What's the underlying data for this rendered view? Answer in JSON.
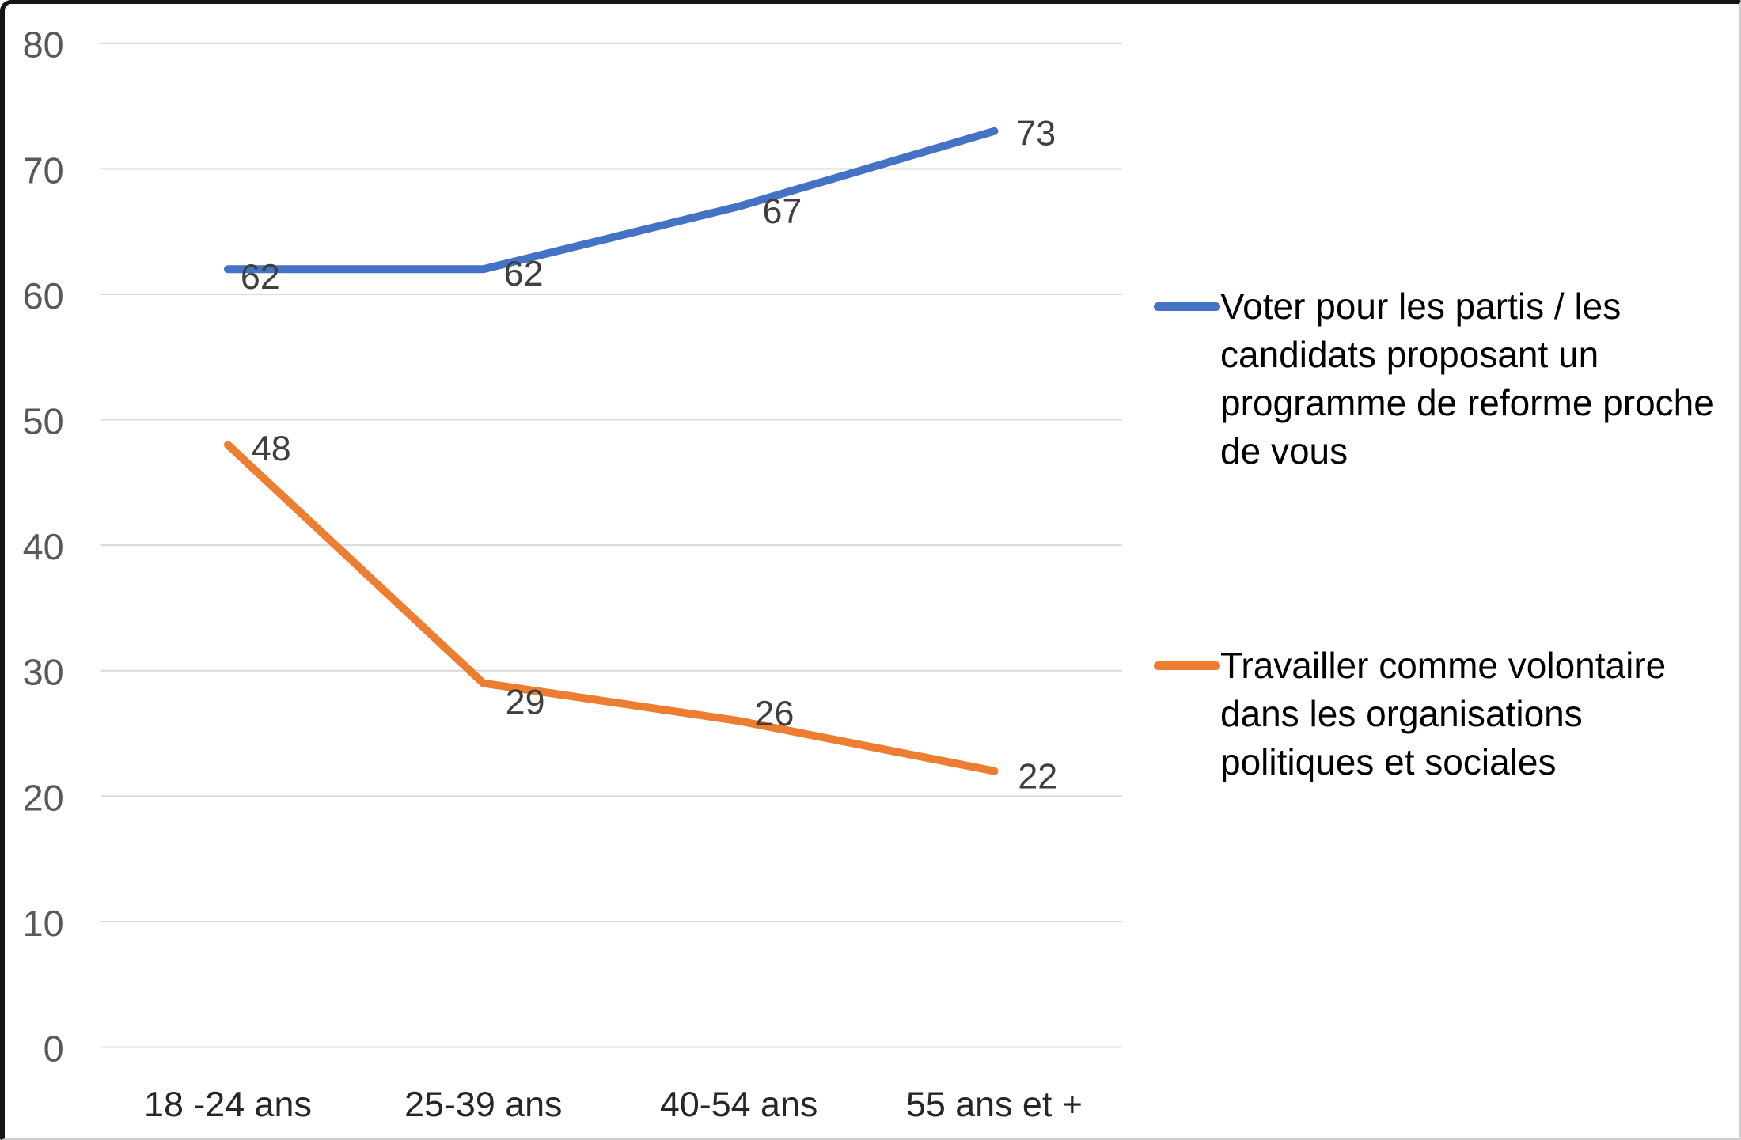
{
  "chart_data": {
    "type": "line",
    "title": "",
    "xlabel": "",
    "ylabel": "",
    "categories": [
      "18 -24 ans",
      "25-39 ans",
      "40-54 ans",
      "55 ans et +"
    ],
    "series": [
      {
        "name": "Voter pour les partis / les candidats proposant un programme de reforme proche de vous",
        "values": [
          62,
          62,
          67,
          73
        ],
        "color": "#4472C4"
      },
      {
        "name": "Travailler comme volontaire dans les organisations politiques et sociales",
        "values": [
          48,
          29,
          26,
          22
        ],
        "color": "#ED7D31"
      }
    ],
    "ylim": [
      0,
      80
    ],
    "yticks": [
      0,
      10,
      20,
      30,
      40,
      50,
      60,
      70,
      80
    ],
    "grid": true,
    "data_labels": true,
    "legend_position": "right"
  },
  "colors": {
    "gridline": "#d9d9d9",
    "y_tick_label": "#595959",
    "x_tick_label": "#262626",
    "data_label": "#3f3f3f",
    "legend_text": "#000000",
    "background": "#ffffff"
  }
}
